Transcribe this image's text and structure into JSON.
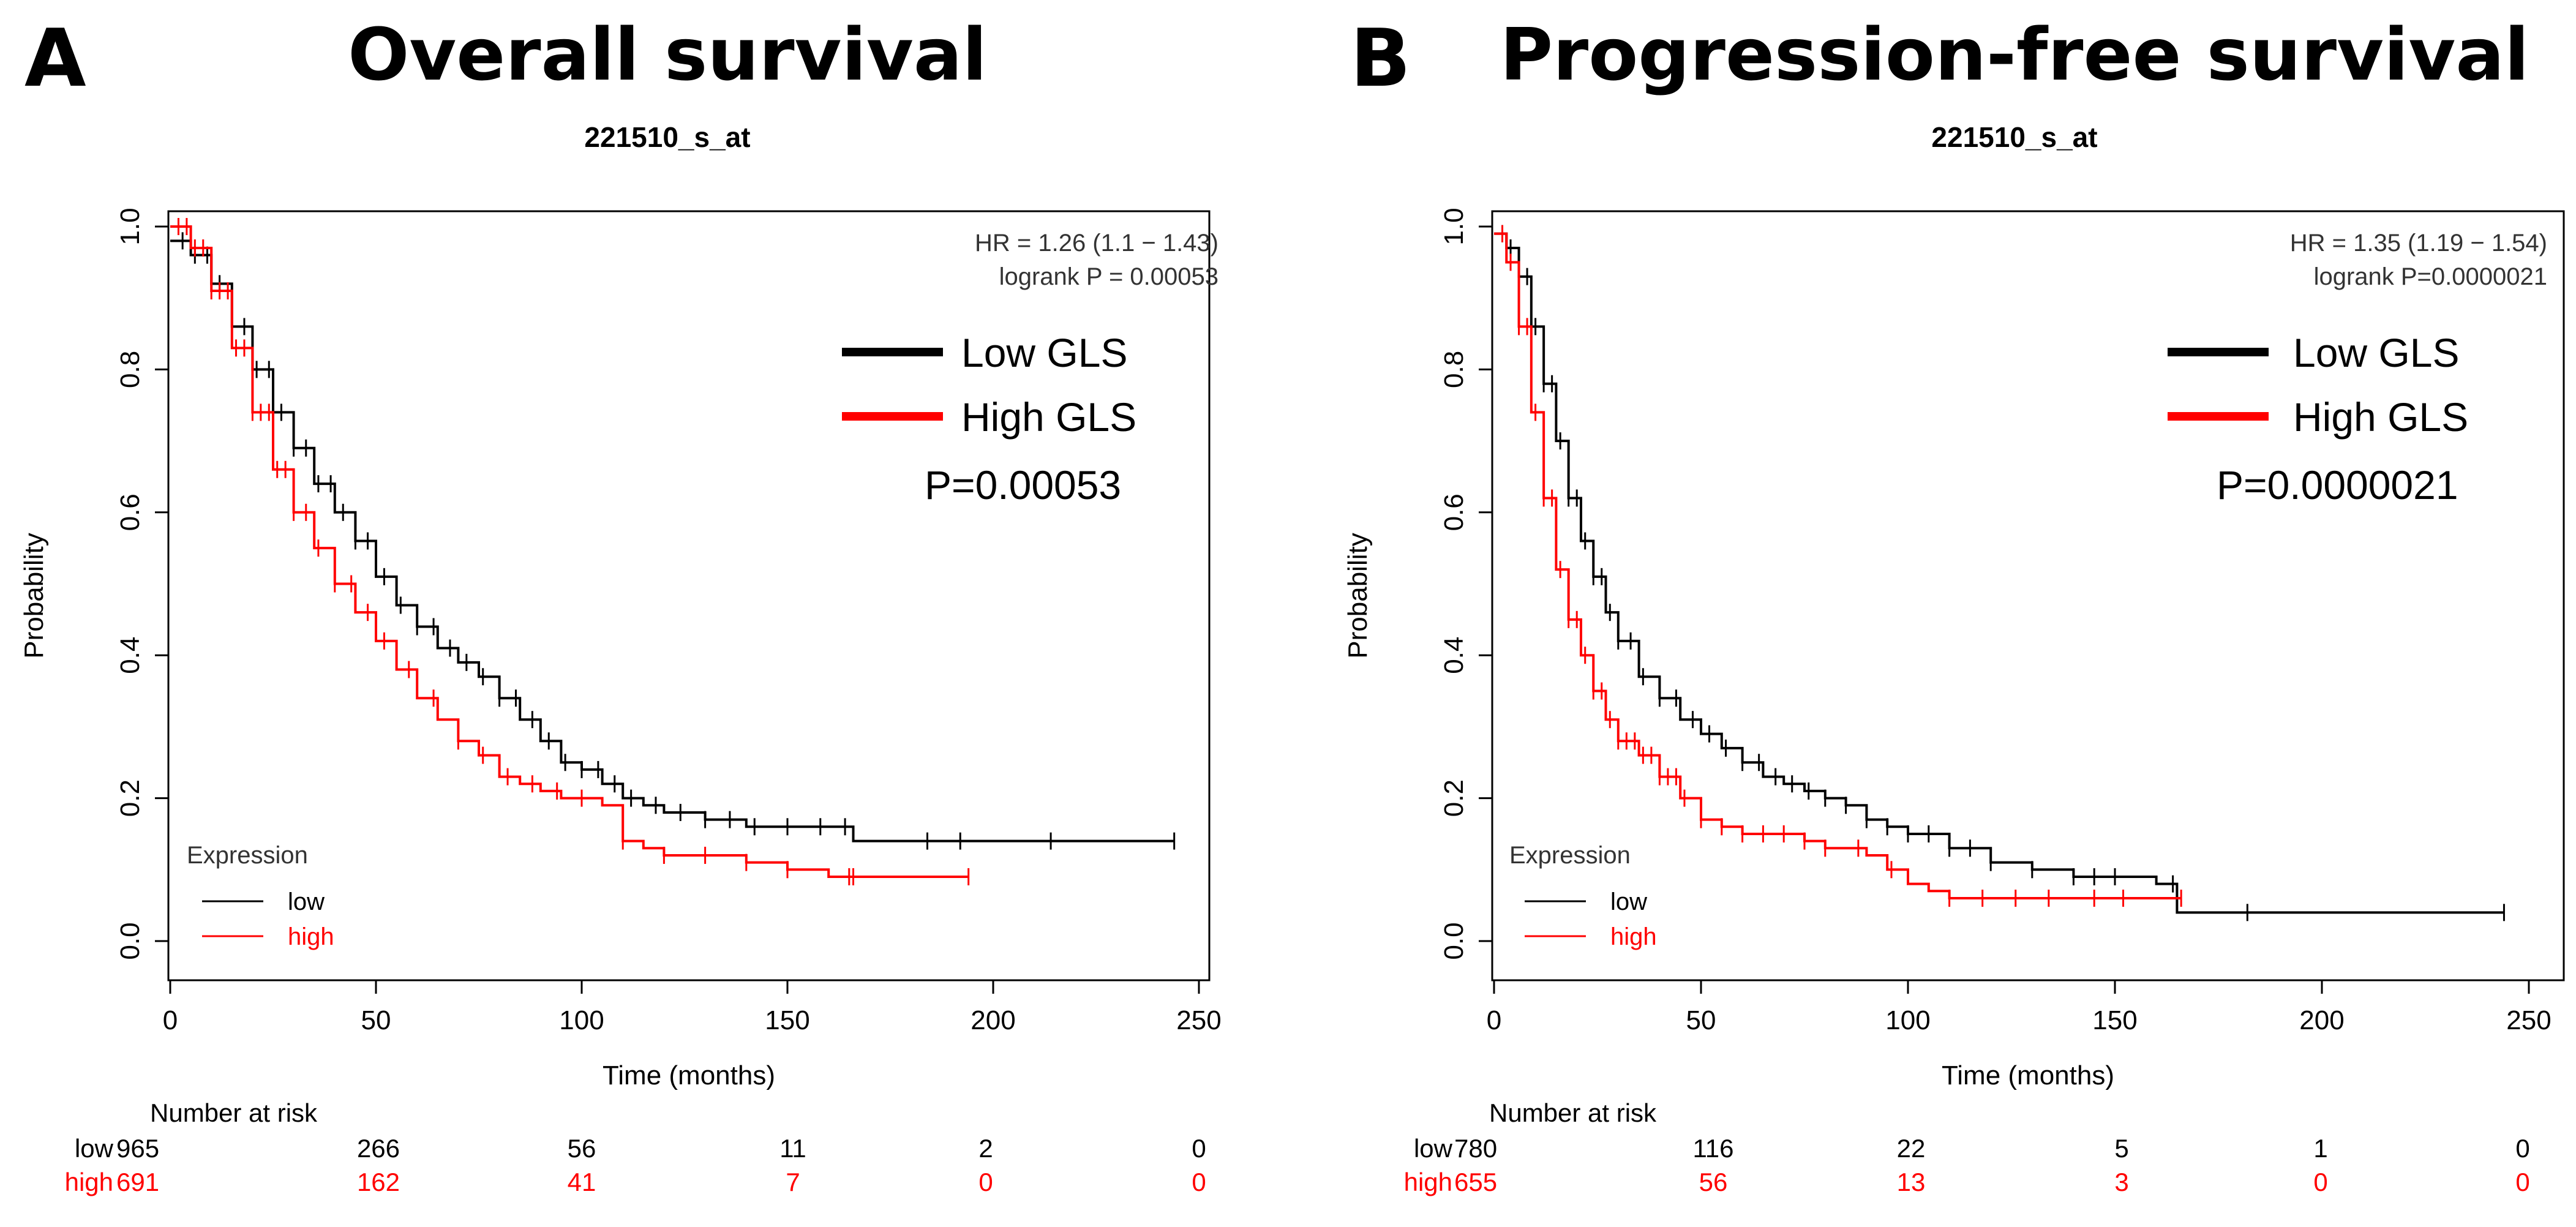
{
  "chart_data": [
    {
      "type": "line",
      "panel_label": "A",
      "title": "Overall survival",
      "subtitle": "221510_s_at",
      "xlabel": "Time (months)",
      "ylabel": "Probability",
      "xlim": [
        0,
        250
      ],
      "ylim": [
        0,
        1
      ],
      "xticks": [
        0,
        50,
        100,
        150,
        200,
        250
      ],
      "yticks": [
        0.0,
        0.2,
        0.4,
        0.6,
        0.8,
        1.0
      ],
      "stats_hr": "HR = 1.26 (1.1 − 1.43)",
      "stats_logrank": "logrank P = 0.00053",
      "legend_big": [
        {
          "label": "Low GLS",
          "color": "#000000"
        },
        {
          "label": "High GLS",
          "color": "#ff0000"
        }
      ],
      "p_value": "P=0.00053",
      "legend_title": "Expression",
      "legend_entries": [
        {
          "label": "low",
          "color": "#000000"
        },
        {
          "label": "high",
          "color": "#ff0000"
        }
      ],
      "series": [
        {
          "name": "low",
          "color": "#000000",
          "x": [
            0,
            5,
            10,
            15,
            20,
            25,
            30,
            35,
            40,
            45,
            50,
            55,
            60,
            65,
            70,
            75,
            80,
            85,
            90,
            95,
            100,
            105,
            110,
            115,
            120,
            125,
            130,
            135,
            140,
            150,
            160,
            166,
            166,
            244
          ],
          "y": [
            0.98,
            0.96,
            0.92,
            0.86,
            0.8,
            0.74,
            0.69,
            0.64,
            0.6,
            0.56,
            0.51,
            0.47,
            0.44,
            0.41,
            0.39,
            0.37,
            0.34,
            0.31,
            0.28,
            0.25,
            0.24,
            0.22,
            0.2,
            0.19,
            0.18,
            0.18,
            0.17,
            0.17,
            0.16,
            0.16,
            0.16,
            0.16,
            0.14,
            0.14
          ],
          "censor_x": [
            3,
            6,
            9,
            12,
            15,
            18,
            21,
            24,
            27,
            30,
            33,
            36,
            39,
            42,
            45,
            48,
            52,
            56,
            60,
            64,
            68,
            72,
            76,
            80,
            84,
            88,
            92,
            96,
            100,
            104,
            108,
            112,
            118,
            124,
            130,
            136,
            142,
            150,
            158,
            164,
            184,
            192,
            214,
            244
          ]
        },
        {
          "name": "high",
          "color": "#ff0000",
          "x": [
            0,
            5,
            10,
            15,
            20,
            25,
            30,
            35,
            40,
            45,
            50,
            55,
            60,
            65,
            70,
            75,
            80,
            85,
            90,
            95,
            100,
            105,
            110,
            115,
            120,
            125,
            130,
            140,
            150,
            160,
            194
          ],
          "y": [
            1.0,
            0.97,
            0.91,
            0.83,
            0.74,
            0.66,
            0.6,
            0.55,
            0.5,
            0.46,
            0.42,
            0.38,
            0.34,
            0.31,
            0.28,
            0.26,
            0.23,
            0.22,
            0.21,
            0.2,
            0.2,
            0.19,
            0.14,
            0.13,
            0.12,
            0.12,
            0.12,
            0.11,
            0.1,
            0.09,
            0.09
          ],
          "censor_x": [
            2,
            4,
            6,
            8,
            10,
            12,
            14,
            16,
            18,
            20,
            22,
            24,
            26,
            28,
            30,
            33,
            36,
            40,
            44,
            48,
            52,
            58,
            64,
            70,
            76,
            82,
            88,
            94,
            100,
            110,
            120,
            130,
            140,
            150,
            165,
            166,
            194
          ]
        }
      ],
      "risk_table": {
        "title": "Number at risk",
        "times": [
          0,
          50,
          100,
          150,
          200,
          250
        ],
        "rows": [
          {
            "label": "low",
            "color": "#000000",
            "values": [
              "965",
              "266",
              "56",
              "11",
              "2",
              "0"
            ]
          },
          {
            "label": "high",
            "color": "#ff0000",
            "values": [
              "691",
              "162",
              "41",
              "7",
              "0",
              "0"
            ]
          }
        ]
      }
    },
    {
      "type": "line",
      "panel_label": "B",
      "title": "Progression-free survival",
      "subtitle": "221510_s_at",
      "xlabel": "Time (months)",
      "ylabel": "Probability",
      "xlim": [
        0,
        250
      ],
      "ylim": [
        0,
        1
      ],
      "xticks": [
        0,
        50,
        100,
        150,
        200,
        250
      ],
      "yticks": [
        0.0,
        0.2,
        0.4,
        0.6,
        0.8,
        1.0
      ],
      "stats_hr": "HR = 1.35 (1.19 − 1.54)",
      "stats_logrank": "logrank P=0.0000021",
      "legend_big": [
        {
          "label": "Low GLS",
          "color": "#000000"
        },
        {
          "label": "High GLS",
          "color": "#ff0000"
        }
      ],
      "p_value": "P=0.0000021",
      "legend_title": "Expression",
      "legend_entries": [
        {
          "label": "low",
          "color": "#000000"
        },
        {
          "label": "high",
          "color": "#ff0000"
        }
      ],
      "series": [
        {
          "name": "low",
          "color": "#000000",
          "x": [
            0,
            3,
            6,
            9,
            12,
            15,
            18,
            21,
            24,
            27,
            30,
            35,
            40,
            45,
            50,
            55,
            60,
            65,
            70,
            75,
            80,
            85,
            90,
            95,
            100,
            110,
            120,
            130,
            140,
            150,
            160,
            165,
            165,
            244
          ],
          "y": [
            0.99,
            0.97,
            0.93,
            0.86,
            0.78,
            0.7,
            0.62,
            0.56,
            0.51,
            0.46,
            0.42,
            0.37,
            0.34,
            0.31,
            0.29,
            0.27,
            0.25,
            0.23,
            0.22,
            0.21,
            0.2,
            0.19,
            0.17,
            0.16,
            0.15,
            0.13,
            0.11,
            0.1,
            0.09,
            0.09,
            0.08,
            0.08,
            0.04,
            0.04
          ],
          "censor_x": [
            2,
            4,
            6,
            8,
            10,
            12,
            14,
            16,
            18,
            20,
            22,
            24,
            26,
            28,
            30,
            33,
            36,
            40,
            44,
            48,
            52,
            56,
            60,
            64,
            68,
            72,
            76,
            80,
            85,
            90,
            95,
            100,
            105,
            110,
            115,
            120,
            130,
            140,
            145,
            150,
            164,
            182,
            244
          ]
        },
        {
          "name": "high",
          "color": "#ff0000",
          "x": [
            0,
            3,
            6,
            9,
            12,
            15,
            18,
            21,
            24,
            27,
            30,
            35,
            40,
            45,
            50,
            55,
            60,
            65,
            70,
            75,
            80,
            85,
            90,
            95,
            100,
            105,
            110,
            120,
            130,
            140,
            150,
            160,
            166
          ],
          "y": [
            0.99,
            0.95,
            0.86,
            0.74,
            0.62,
            0.52,
            0.45,
            0.4,
            0.35,
            0.31,
            0.28,
            0.26,
            0.23,
            0.2,
            0.17,
            0.16,
            0.15,
            0.15,
            0.15,
            0.14,
            0.13,
            0.13,
            0.12,
            0.1,
            0.08,
            0.07,
            0.06,
            0.06,
            0.06,
            0.06,
            0.06,
            0.06,
            0.06
          ],
          "censor_x": [
            2,
            4,
            6,
            8,
            10,
            12,
            14,
            16,
            18,
            20,
            22,
            24,
            26,
            28,
            30,
            32,
            34,
            36,
            38,
            40,
            42,
            44,
            46,
            50,
            55,
            60,
            65,
            70,
            75,
            80,
            88,
            96,
            110,
            118,
            126,
            134,
            145,
            152,
            166
          ]
        }
      ],
      "risk_table": {
        "title": "Number at risk",
        "times": [
          0,
          50,
          100,
          150,
          200,
          250
        ],
        "rows": [
          {
            "label": "low",
            "color": "#000000",
            "values": [
              "780",
              "116",
              "22",
              "5",
              "1",
              "0"
            ]
          },
          {
            "label": "high",
            "color": "#ff0000",
            "values": [
              "655",
              "56",
              "13",
              "3",
              "0",
              "0"
            ]
          }
        ]
      }
    }
  ]
}
